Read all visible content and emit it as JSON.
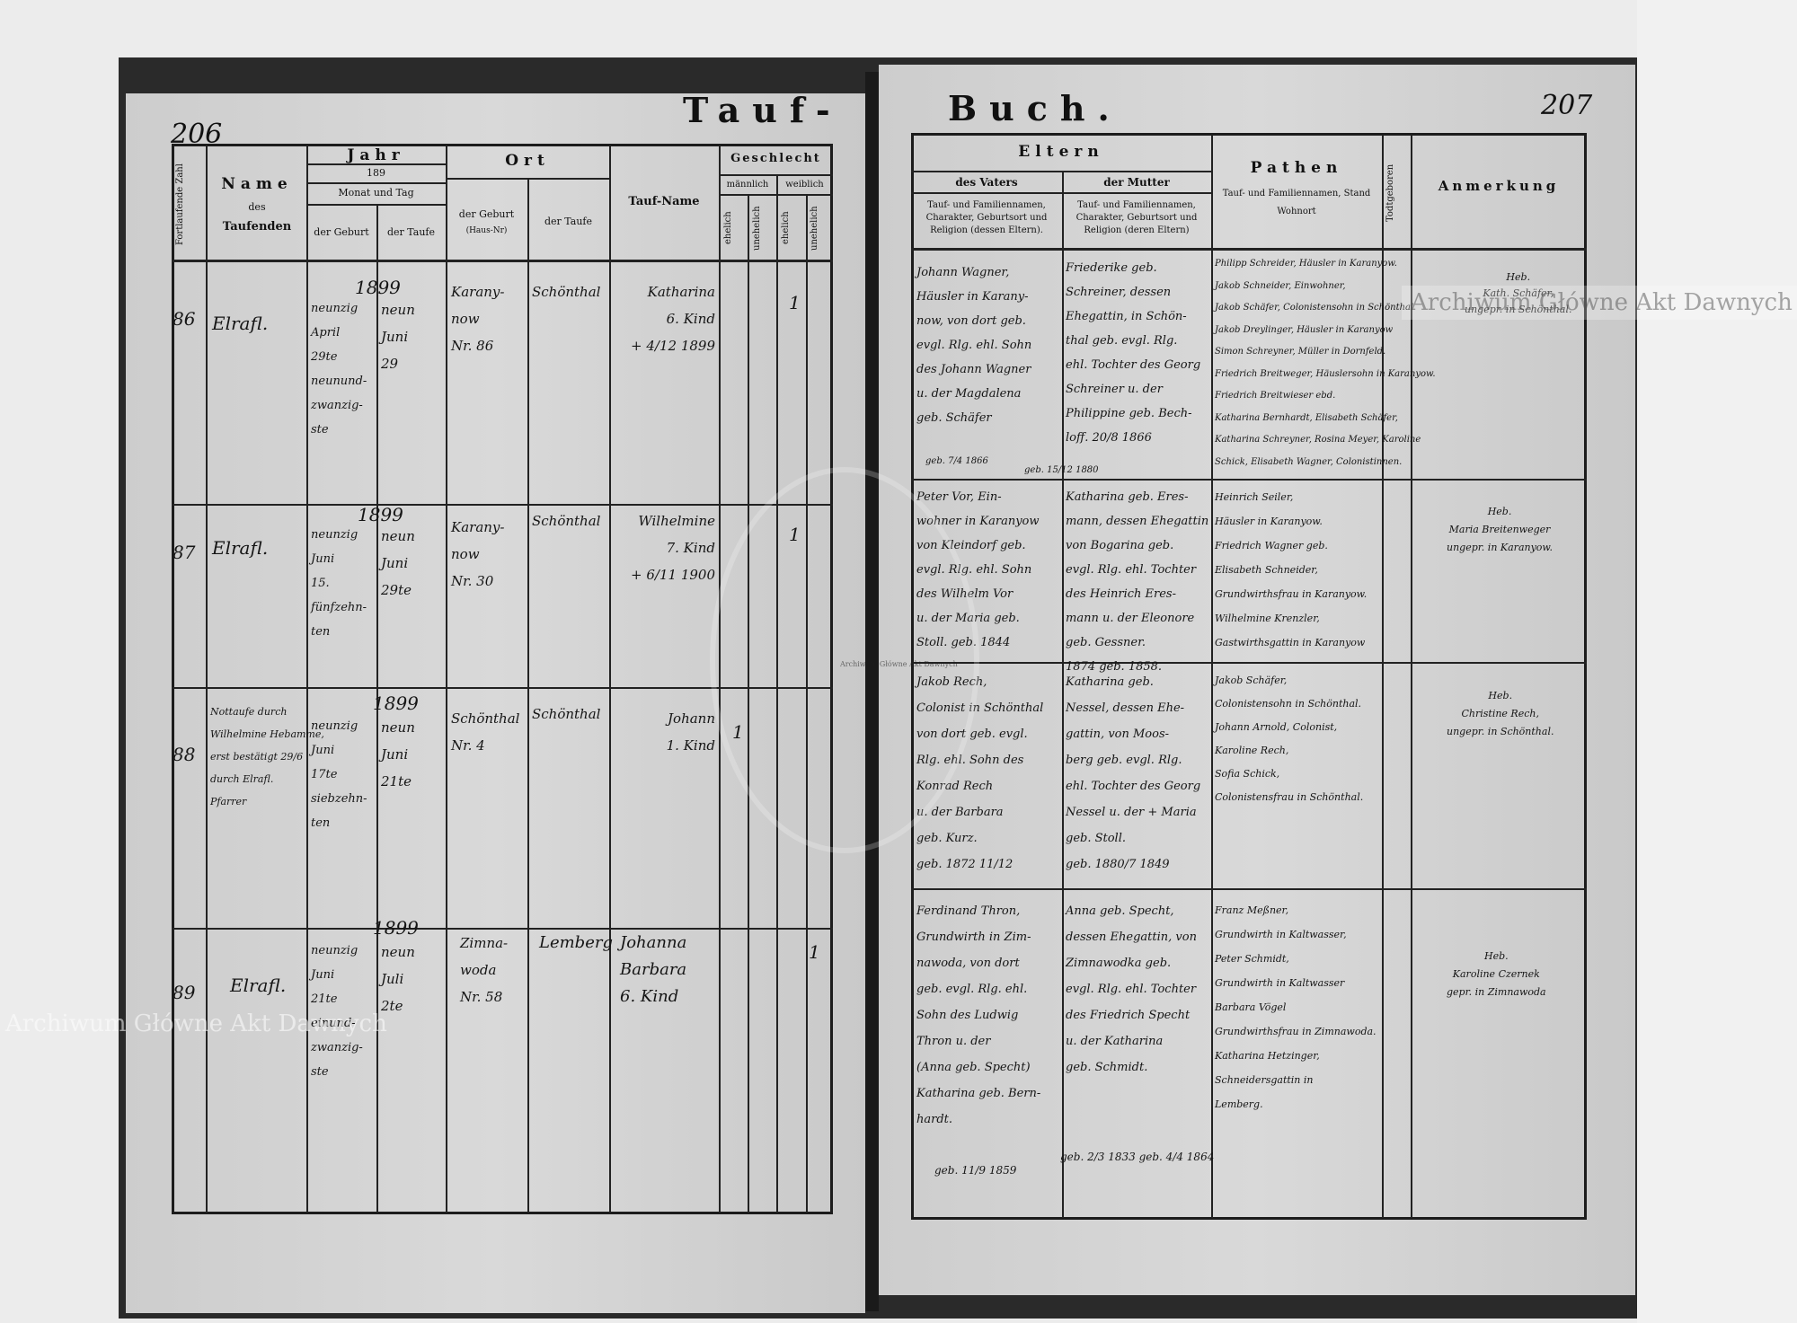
{
  "watermark": {
    "text": "Archiwum Główne Akt Dawnych",
    "seal_text": "ARCHIWUM GŁÓWNE AKT DAWNYCH"
  },
  "left_page": {
    "page_number": "206",
    "title": "Tauf-",
    "headers": {
      "number": "Fortlaufende Zahl",
      "name": "Name",
      "name_sub": "des",
      "name_sub2": "Taufenden",
      "year": "Jahr",
      "year_value": "189",
      "month_day": "Monat und Tag",
      "birth": "der Geburt",
      "baptism": "der Taufe",
      "place": "Ort",
      "place_birth": "der Geburt",
      "place_birth_sub": "(Haus-Nr)",
      "place_baptism": "der Taufe",
      "baptismal_name": "Tauf-Name",
      "sex": "Geschlecht",
      "male": "männlich",
      "female": "weiblich",
      "legit": "ehelich",
      "illegit": "unehelich"
    },
    "entries": [
      {
        "no": "86",
        "name": "Elrafl.",
        "year": "1899",
        "birth": "neunzig\nApril\n29te\nneunund-\nzwanzig-\nste",
        "baptism": "neun\nJuni\n29",
        "place_birth": "Karany-\nnow\nNr. 86",
        "place_baptism": "Schönthal",
        "tauf_name": "Katharina\n6. Kind\n+ 4/12 1899",
        "sex_mark": "1"
      },
      {
        "no": "87",
        "name": "Elrafl.",
        "year": "1899",
        "birth": "neunzig\nJuni\n15.\nfünfzehn-\nten",
        "baptism": "neun\nJuni\n29te",
        "place_birth": "Karany-\nnow\nNr. 30",
        "place_baptism": "Schönthal",
        "tauf_name": "Wilhelmine\n7. Kind\n+ 6/11 1900",
        "sex_mark": "1"
      },
      {
        "no": "88",
        "name": "Nottaufe durch\nWilhelmine Hebamme,\nerst bestätigt 29/6\ndurch Elrafl.\nPfarrer",
        "year": "1899",
        "birth": "neunzig\nJuni\n17te\nsiebzehn-\nten",
        "baptism": "neun\nJuni\n21te",
        "place_birth": "Schönthal\nNr. 4",
        "place_baptism": "Schönthal",
        "tauf_name": "Johann\n1. Kind",
        "sex_mark": "1"
      },
      {
        "no": "89",
        "name": "Elrafl.",
        "year": "1899",
        "birth": "neunzig\nJuni\n21te\neinund-\nzwanzig-\nste",
        "baptism": "neun\nJuli\n2te",
        "place_birth": "Zimna-\nwoda\nNr. 58",
        "place_baptism": "Lemberg",
        "tauf_name": "Johanna\nBarbara\n6. Kind",
        "sex_mark": "1"
      }
    ]
  },
  "right_page": {
    "page_number": "207",
    "title": "Buch.",
    "headers": {
      "parents": "Eltern",
      "father": "des Vaters",
      "mother": "der Mutter",
      "father_sub": "Tauf- und Familiennamen, Charakter, Geburtsort und Religion (dessen Eltern).",
      "mother_sub": "Tauf- und Familiennamen, Charakter, Geburtsort und Religion (deren Eltern)",
      "godparents": "Pathen",
      "godparents_sub": "Tauf- und Familiennamen, Stand\nWohnort",
      "stillborn": "Todtgeboren",
      "remarks": "Anmerkung"
    },
    "entries": [
      {
        "father": "Johann Wagner,\nHäusler in Karany-\nnow, von dort geb.\nevgl. Rlg. ehl. Sohn\ndes Johann Wagner\nu. der Magdalena\ngeb. Schäfer",
        "father_date": "geb. 7/4 1866",
        "mother": "Friederike geb.\nSchreiner, dessen\nEhegattin, in Schön-\nthal geb. evgl. Rlg.\nehl. Tochter des Georg\nSchreiner u. der\nPhilippine geb. Bech-\nloff.   20/8 1866",
        "mother_date": "geb. 15/12 1880",
        "godparents": "Philipp Schreider, Häusler in Karanyow.\nJakob Schneider, Einwohner,\nJakob Schäfer, Colonistensohn in Schönthal\nJakob Dreylinger, Häusler in Karanyow\nSimon Schreyner, Müller in Dornfeld.\nFriedrich Breitweger, Häuslersohn in Karanyow.\nFriedrich Breitwieser ebd.\nKatharina Bernhardt, Elisabeth Schäfer,\nKatharina Schreyner, Rosina Meyer, Karoline\nSchick, Elisabeth Wagner, Colonistinnen.",
        "remarks": "Heb.\nKath. Schäfer,\nungepr. in Schönthal."
      },
      {
        "father": "Peter Vor, Ein-\nwohner in Karanyow\nvon Kleindorf geb.\nevgl. Rlg. ehl. Sohn\ndes Wilhelm Vor\nu. der Maria geb.\nStoll.   geb. 1844",
        "father_date": "",
        "mother": "Katharina geb. Eres-\nmann, dessen Ehegattin\nvon Bogarina geb.\nevgl. Rlg. ehl. Tochter\ndes Heinrich Eres-\nmann u. der Eleonore\ngeb. Gessner.\n1874  geb. 1858.",
        "mother_date": "",
        "godparents": "Heinrich Seiler,\nHäusler in Karanyow.\nFriedrich Wagner geb.\nElisabeth Schneider,\nGrundwirthsfrau in Karanyow.\nWilhelmine Krenzler,\nGastwirthsgattin in Karanyow",
        "remarks": "Heb.\nMaria Breitenweger\nungepr. in Karanyow."
      },
      {
        "father": "Jakob Rech,\nColonist in Schönthal\nvon dort geb. evgl.\nRlg. ehl. Sohn des\nKonrad Rech\nu. der Barbara\ngeb. Kurz.\ngeb. 1872 11/12",
        "father_date": "",
        "mother": "Katharina geb.\nNessel, dessen Ehe-\ngattin, von Moos-\nberg geb. evgl. Rlg.\nehl. Tochter des Georg\nNessel u. der + Maria\ngeb. Stoll.\ngeb. 1880/7  1849",
        "mother_date": "",
        "godparents": "Jakob Schäfer,\nColonistensohn in Schönthal.\nJohann Arnold, Colonist,\nKaroline Rech,\nSofia Schick,\nColonistensfrau in Schönthal.",
        "remarks": "Heb.\nChristine Rech,\nungepr. in Schönthal."
      },
      {
        "father": "Ferdinand Thron,\nGrundwirth in Zim-\nnawoda, von dort\ngeb. evgl. Rlg. ehl.\nSohn des Ludwig\nThron u. der\n(Anna geb. Specht)\nKatharina geb. Bern-\nhardt.",
        "father_date": "geb. 11/9 1859",
        "mother": "Anna geb. Specht,\ndessen Ehegattin, von\nZimnawodka geb.\nevgl. Rlg. ehl. Tochter\ndes Friedrich Specht\nu. der Katharina\ngeb. Schmidt.",
        "mother_date": "geb. 2/3 1833  geb. 4/4 1864",
        "godparents": "Franz Meßner,\nGrundwirth in Kaltwasser,\nPeter Schmidt,\nGrundwirth in Kaltwasser\nBarbara Vögel\nGrundwirthsfrau in Zimnawoda.\nKatharina Hetzinger,\nSchneidersgattin in\nLemberg.",
        "remarks": "Heb.\nKaroline Czernek\ngepr. in Zimnawoda"
      }
    ]
  }
}
